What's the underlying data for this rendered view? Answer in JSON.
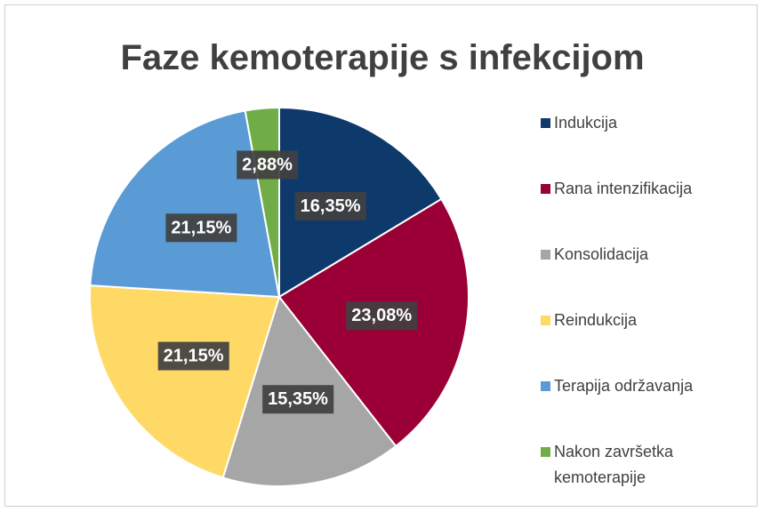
{
  "chart_data": {
    "type": "pie",
    "title": "Faze kemoterapije s infekcijom",
    "categories": [
      "Indukcija",
      "Rana intenzifikacija",
      "Konsolidacija",
      "Reindukcija",
      "Terapija održavanja",
      "Nakon završetka kemoterapije"
    ],
    "values": [
      16.35,
      23.08,
      15.35,
      21.15,
      21.15,
      2.88
    ],
    "value_labels": [
      "16,35%",
      "23,08%",
      "15,35%",
      "21,15%",
      "21,15%",
      "2,88%"
    ],
    "colors": [
      "#0e3a6b",
      "#9a0036",
      "#a6a6a6",
      "#ffd966",
      "#5b9bd5",
      "#70ad47"
    ],
    "legend": "right"
  }
}
